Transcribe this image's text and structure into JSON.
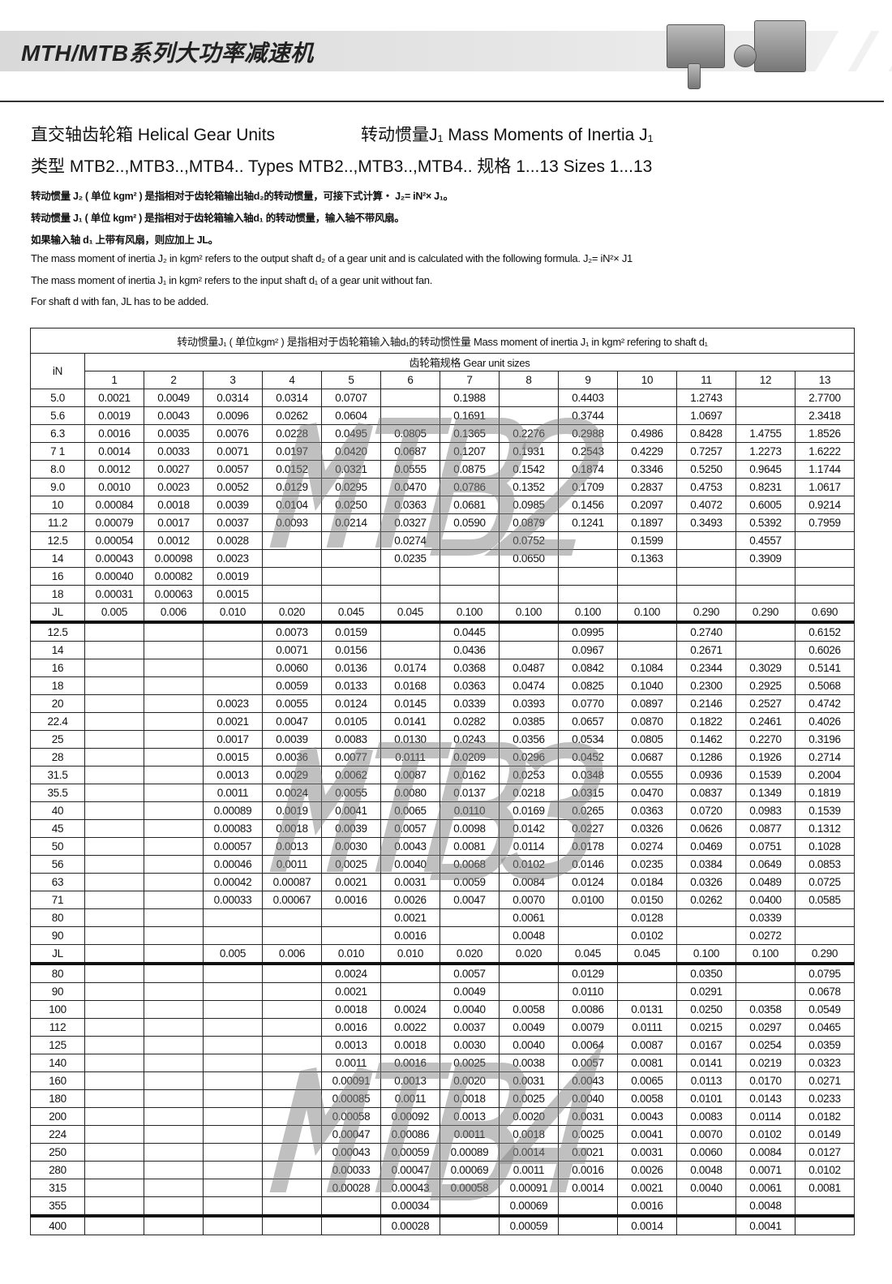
{
  "header": {
    "title": "MTH/MTB系列大功率减速机"
  },
  "headings": {
    "line1_left": "直交轴齿轮箱 Helical Gear Units",
    "line1_right": "转动惯量J₁ Mass Moments of Inertia J₁",
    "line2": "类型 MTB2..,MTB3..,MTB4..  Types MTB2..,MTB3..,MTB4.. 规格 1...13 Sizes 1...13"
  },
  "notes": [
    "转动惯量 J₂ ( 单位 kgm² ) 是指相对于齿轮箱输出轴d₂的转动惯量，可接下式计算・ J₂= iN²× J₁。",
    "转动惯量 J₁ ( 单位 kgm² ) 是指相对于齿轮箱输入轴d₁ 的转动惯量，输入轴不带风扇。",
    "如果输入轴 d₁ 上带有风扇，则应加上 JL。",
    "The mass moment of inertia J₂ in kgm² refers to the output shaft d₂ of a gear unit and is calculated with the following formula. J₂= iN²× J1",
    "The mass moment of inertia J₁ in kgm² refers to the input shaft d₁ of a gear unit without fan.",
    "For shaft d with fan, JL has to be added."
  ],
  "table": {
    "title": "转动惯量J₁ ( 单位kgm² ) 是指相对于齿轮箱输入轴d₁的转动惯性量 Mass moment of inertia J₁ in kgm² refering to shaft d₁",
    "row_header": "iN",
    "group_header": "齿轮箱规格   Gear unit sizes",
    "sizes": [
      "1",
      "2",
      "3",
      "4",
      "5",
      "6",
      "7",
      "8",
      "9",
      "10",
      "11",
      "12",
      "13"
    ],
    "sections": [
      {
        "watermark": "MTB2",
        "rows": [
          [
            "5.0",
            "0.0021",
            "0.0049",
            "0.0314",
            "0.0314",
            "0.0707",
            "",
            "0.1988",
            "",
            "0.4403",
            "",
            "1.2743",
            "",
            "2.7700"
          ],
          [
            "5.6",
            "0.0019",
            "0.0043",
            "0.0096",
            "0.0262",
            "0.0604",
            "",
            "0.1691",
            "",
            "0.3744",
            "",
            "1.0697",
            "",
            "2.3418"
          ],
          [
            "6.3",
            "0.0016",
            "0.0035",
            "0.0076",
            "0.0228",
            "0.0495",
            "0.0805",
            "0.1365",
            "0.2276",
            "0.2988",
            "0.4986",
            "0.8428",
            "1.4755",
            "1.8526"
          ],
          [
            "7 1",
            "0.0014",
            "0.0033",
            "0.0071",
            "0.0197",
            "0.0420",
            "0.0687",
            "0.1207",
            "0.1931",
            "0.2543",
            "0.4229",
            "0.7257",
            "1.2273",
            "1.6222"
          ],
          [
            "8.0",
            "0.0012",
            "0.0027",
            "0.0057",
            "0.0152",
            "0.0321",
            "0.0555",
            "0.0875",
            "0.1542",
            "0.1874",
            "0.3346",
            "0.5250",
            "0.9645",
            "1.1744"
          ],
          [
            "9.0",
            "0.0010",
            "0.0023",
            "0.0052",
            "0.0129",
            "0.0295",
            "0.0470",
            "0.0786",
            "0.1352",
            "0.1709",
            "0.2837",
            "0.4753",
            "0.8231",
            "1.0617"
          ],
          [
            "10",
            "0.00084",
            "0.0018",
            "0.0039",
            "0.0104",
            "0.0250",
            "0.0363",
            "0.0681",
            "0.0985",
            "0.1456",
            "0.2097",
            "0.4072",
            "0.6005",
            "0.9214"
          ],
          [
            "11.2",
            "0.00079",
            "0.0017",
            "0.0037",
            "0.0093",
            "0.0214",
            "0.0327",
            "0.0590",
            "0.0879",
            "0.1241",
            "0.1897",
            "0.3493",
            "0.5392",
            "0.7959"
          ],
          [
            "12.5",
            "0.00054",
            "0.0012",
            "0.0028",
            "",
            "",
            "0.0274",
            "",
            "0.0752",
            "",
            "0.1599",
            "",
            "0.4557",
            ""
          ],
          [
            "14",
            "0.00043",
            "0.00098",
            "0.0023",
            "",
            "",
            "0.0235",
            "",
            "0.0650",
            "",
            "0.1363",
            "",
            "0.3909",
            ""
          ],
          [
            "16",
            "0.00040",
            "0.00082",
            "0.0019",
            "",
            "",
            "",
            "",
            "",
            "",
            "",
            "",
            "",
            ""
          ],
          [
            "18",
            "0.00031",
            "0.00063",
            "0.0015",
            "",
            "",
            "",
            "",
            "",
            "",
            "",
            "",
            "",
            ""
          ],
          [
            "JL",
            "0.005",
            "0.006",
            "0.010",
            "0.020",
            "0.045",
            "0.045",
            "0.100",
            "0.100",
            "0.100",
            "0.100",
            "0.290",
            "0.290",
            "0.690"
          ]
        ]
      },
      {
        "watermark": "MTB3",
        "rows": [
          [
            "12.5",
            "",
            "",
            "",
            "0.0073",
            "0.0159",
            "",
            "0.0445",
            "",
            "0.0995",
            "",
            "0.2740",
            "",
            "0.6152"
          ],
          [
            "14",
            "",
            "",
            "",
            "0.0071",
            "0.0156",
            "",
            "0.0436",
            "",
            "0.0967",
            "",
            "0.2671",
            "",
            "0.6026"
          ],
          [
            "16",
            "",
            "",
            "",
            "0.0060",
            "0.0136",
            "0.0174",
            "0.0368",
            "0.0487",
            "0.0842",
            "0.1084",
            "0.2344",
            "0.3029",
            "0.5141"
          ],
          [
            "18",
            "",
            "",
            "",
            "0.0059",
            "0.0133",
            "0.0168",
            "0.0363",
            "0.0474",
            "0.0825",
            "0.1040",
            "0.2300",
            "0.2925",
            "0.5068"
          ],
          [
            "20",
            "",
            "",
            "0.0023",
            "0.0055",
            "0.0124",
            "0.0145",
            "0.0339",
            "0.0393",
            "0.0770",
            "0.0897",
            "0.2146",
            "0.2527",
            "0.4742"
          ],
          [
            "22.4",
            "",
            "",
            "0.0021",
            "0.0047",
            "0.0105",
            "0.0141",
            "0.0282",
            "0.0385",
            "0.0657",
            "0.0870",
            "0.1822",
            "0.2461",
            "0.4026"
          ],
          [
            "25",
            "",
            "",
            "0.0017",
            "0.0039",
            "0.0083",
            "0.0130",
            "0.0243",
            "0.0356",
            "0.0534",
            "0.0805",
            "0.1462",
            "0.2270",
            "0.3196"
          ],
          [
            "28",
            "",
            "",
            "0.0015",
            "0.0036",
            "0.0077",
            "0.0111",
            "0.0209",
            "0.0296",
            "0.0452",
            "0.0687",
            "0.1286",
            "0.1926",
            "0.2714"
          ],
          [
            "31.5",
            "",
            "",
            "0.0013",
            "0.0029",
            "0.0062",
            "0.0087",
            "0.0162",
            "0.0253",
            "0.0348",
            "0.0555",
            "0.0936",
            "0.1539",
            "0.2004"
          ],
          [
            "35.5",
            "",
            "",
            "0.0011",
            "0.0024",
            "0.0055",
            "0.0080",
            "0.0137",
            "0.0218",
            "0.0315",
            "0.0470",
            "0.0837",
            "0.1349",
            "0.1819"
          ],
          [
            "40",
            "",
            "",
            "0.00089",
            "0.0019",
            "0.0041",
            "0.0065",
            "0.0110",
            "0.0169",
            "0.0265",
            "0.0363",
            "0.0720",
            "0.0983",
            "0.1539"
          ],
          [
            "45",
            "",
            "",
            "0.00083",
            "0.0018",
            "0.0039",
            "0.0057",
            "0.0098",
            "0.0142",
            "0.0227",
            "0.0326",
            "0.0626",
            "0.0877",
            "0.1312"
          ],
          [
            "50",
            "",
            "",
            "0.00057",
            "0.0013",
            "0.0030",
            "0.0043",
            "0.0081",
            "0.0114",
            "0.0178",
            "0.0274",
            "0.0469",
            "0.0751",
            "0.1028"
          ],
          [
            "56",
            "",
            "",
            "0.00046",
            "0.0011",
            "0.0025",
            "0.0040",
            "0.0068",
            "0.0102",
            "0.0146",
            "0.0235",
            "0.0384",
            "0.0649",
            "0.0853"
          ],
          [
            "63",
            "",
            "",
            "0.00042",
            "0.00087",
            "0.0021",
            "0.0031",
            "0.0059",
            "0.0084",
            "0.0124",
            "0.0184",
            "0.0326",
            "0.0489",
            "0.0725"
          ],
          [
            "71",
            "",
            "",
            "0.00033",
            "0.00067",
            "0.0016",
            "0.0026",
            "0.0047",
            "0.0070",
            "0.0100",
            "0.0150",
            "0.0262",
            "0.0400",
            "0.0585"
          ],
          [
            "80",
            "",
            "",
            "",
            "",
            "",
            "0.0021",
            "",
            "0.0061",
            "",
            "0.0128",
            "",
            "0.0339",
            ""
          ],
          [
            "90",
            "",
            "",
            "",
            "",
            "",
            "0.0016",
            "",
            "0.0048",
            "",
            "0.0102",
            "",
            "0.0272",
            ""
          ],
          [
            "JL",
            "",
            "",
            "0.005",
            "0.006",
            "0.010",
            "0.010",
            "0.020",
            "0.020",
            "0.045",
            "0.045",
            "0.100",
            "0.100",
            "0.290"
          ]
        ]
      },
      {
        "watermark": "MTB4",
        "rows": [
          [
            "80",
            "",
            "",
            "",
            "",
            "0.0024",
            "",
            "0.0057",
            "",
            "0.0129",
            "",
            "0.0350",
            "",
            "0.0795"
          ],
          [
            "90",
            "",
            "",
            "",
            "",
            "0.0021",
            "",
            "0.0049",
            "",
            "0.0110",
            "",
            "0.0291",
            "",
            "0.0678"
          ],
          [
            "100",
            "",
            "",
            "",
            "",
            "0.0018",
            "0.0024",
            "0.0040",
            "0.0058",
            "0.0086",
            "0.0131",
            "0.0250",
            "0.0358",
            "0.0549"
          ],
          [
            "112",
            "",
            "",
            "",
            "",
            "0.0016",
            "0.0022",
            "0.0037",
            "0.0049",
            "0.0079",
            "0.0111",
            "0.0215",
            "0.0297",
            "0.0465"
          ],
          [
            "125",
            "",
            "",
            "",
            "",
            "0.0013",
            "0.0018",
            "0.0030",
            "0.0040",
            "0.0064",
            "0.0087",
            "0.0167",
            "0.0254",
            "0.0359"
          ],
          [
            "140",
            "",
            "",
            "",
            "",
            "0.0011",
            "0.0016",
            "0.0025",
            "0.0038",
            "0.0057",
            "0.0081",
            "0.0141",
            "0.0219",
            "0.0323"
          ],
          [
            "160",
            "",
            "",
            "",
            "",
            "0.00091",
            "0.0013",
            "0.0020",
            "0.0031",
            "0.0043",
            "0.0065",
            "0.0113",
            "0.0170",
            "0.0271"
          ],
          [
            "180",
            "",
            "",
            "",
            "",
            "0.00085",
            "0.0011",
            "0.0018",
            "0.0025",
            "0.0040",
            "0.0058",
            "0.0101",
            "0.0143",
            "0.0233"
          ],
          [
            "200",
            "",
            "",
            "",
            "",
            "0.00058",
            "0.00092",
            "0.0013",
            "0.0020",
            "0.0031",
            "0.0043",
            "0.0083",
            "0.0114",
            "0.0182"
          ],
          [
            "224",
            "",
            "",
            "",
            "",
            "0.00047",
            "0.00086",
            "0.0011",
            "0.0018",
            "0.0025",
            "0.0041",
            "0.0070",
            "0.0102",
            "0.0149"
          ],
          [
            "250",
            "",
            "",
            "",
            "",
            "0.00043",
            "0.00059",
            "0.00089",
            "0.0014",
            "0.0021",
            "0.0031",
            "0.0060",
            "0.0084",
            "0.0127"
          ],
          [
            "280",
            "",
            "",
            "",
            "",
            "0.00033",
            "0.00047",
            "0.00069",
            "0.0011",
            "0.0016",
            "0.0026",
            "0.0048",
            "0.0071",
            "0.0102"
          ],
          [
            "315",
            "",
            "",
            "",
            "",
            "0.00028",
            "0.00043",
            "0.00058",
            "0.00091",
            "0.0014",
            "0.0021",
            "0.0040",
            "0.0061",
            "0.0081"
          ],
          [
            "355",
            "",
            "",
            "",
            "",
            "",
            "0.00034",
            "",
            "0.00069",
            "",
            "0.0016",
            "",
            "0.0048",
            ""
          ],
          [
            "400",
            "",
            "",
            "",
            "",
            "",
            "0.00028",
            "",
            "0.00059",
            "",
            "0.0014",
            "",
            "0.0041",
            ""
          ]
        ]
      }
    ]
  }
}
